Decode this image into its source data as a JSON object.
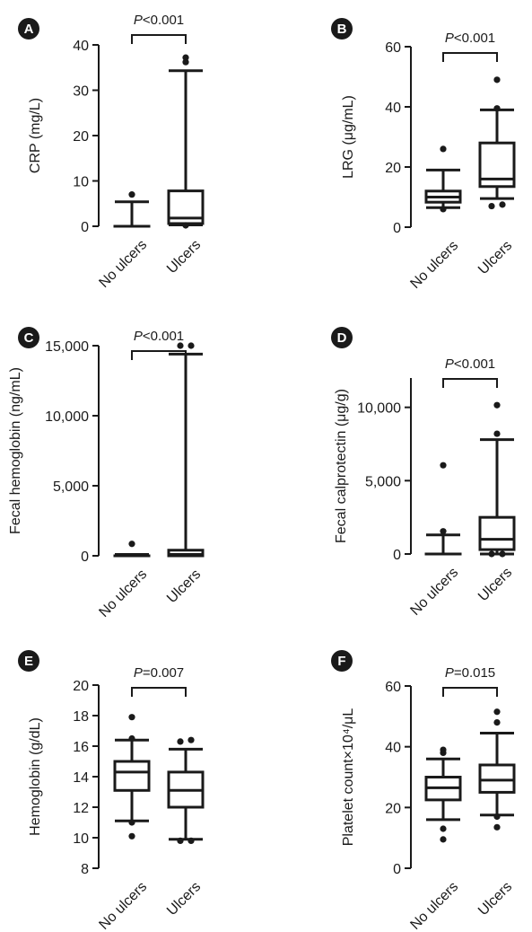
{
  "chart_data": [
    {
      "id": "A",
      "type": "box",
      "ylabel": "CRP (mg/L)",
      "ylim": [
        0,
        40
      ],
      "yticks": [
        0,
        10,
        20,
        30,
        40
      ],
      "ytick_labels": [
        "0",
        "10",
        "20",
        "30",
        "40"
      ],
      "categories": [
        "No ulcers",
        "Ulcers"
      ],
      "pvalue": {
        "label": "P",
        "op": "<",
        "value": "0.001"
      },
      "boxes": [
        {
          "lo": 0,
          "q1": 0,
          "median": 0,
          "q3": 0,
          "hi": 5.4,
          "outliers": [
            7
          ]
        },
        {
          "lo": 0.3,
          "q1": 0.6,
          "median": 1.8,
          "q3": 7.8,
          "hi": 34.3,
          "outliers": [
            36.2,
            37.2,
            0.2
          ]
        }
      ]
    },
    {
      "id": "B",
      "type": "box",
      "ylabel": "LRG (μg/mL)",
      "ylim": [
        0,
        60
      ],
      "yticks": [
        0,
        20,
        40,
        60
      ],
      "ytick_labels": [
        "0",
        "20",
        "40",
        "60"
      ],
      "categories": [
        "No ulcers",
        "Ulcers"
      ],
      "pvalue": {
        "label": "P",
        "op": "<",
        "value": "0.001"
      },
      "boxes": [
        {
          "lo": 6.5,
          "q1": 8.3,
          "median": 10,
          "q3": 12,
          "hi": 19,
          "outliers": [
            26,
            6
          ]
        },
        {
          "lo": 9.5,
          "q1": 13.5,
          "median": 16,
          "q3": 28,
          "hi": 39,
          "outliers": [
            49,
            39.5,
            7,
            7.5
          ]
        }
      ]
    },
    {
      "id": "C",
      "type": "box",
      "ylabel": "Fecal hemoglobin (ng/mL)",
      "ylim": [
        0,
        15000
      ],
      "yticks": [
        0,
        5000,
        10000,
        15000
      ],
      "ytick_labels": [
        "0",
        "5,000",
        "10,000",
        "15,000"
      ],
      "categories": [
        "No ulcers",
        "Ulcers"
      ],
      "pvalue": {
        "label": "P",
        "op": "<",
        "value": "0.001"
      },
      "boxes": [
        {
          "lo": 0,
          "q1": 0,
          "median": 0,
          "q3": 0,
          "hi": 100,
          "outliers": [
            850
          ]
        },
        {
          "lo": 0,
          "q1": 0,
          "median": 100,
          "q3": 400,
          "hi": 14400,
          "outliers": [
            15000,
            15000
          ]
        }
      ]
    },
    {
      "id": "D",
      "type": "box",
      "ylabel": "Fecal calprotectin (μg/g)",
      "ylim": [
        0,
        12000
      ],
      "yticks": [
        0,
        5000,
        10000
      ],
      "ytick_labels": [
        "0",
        "5,000",
        "10,000"
      ],
      "categories": [
        "No ulcers",
        "Ulcers"
      ],
      "pvalue": {
        "label": "P",
        "op": "<",
        "value": "0.001"
      },
      "boxes": [
        {
          "lo": 0,
          "q1": 0,
          "median": 0,
          "q3": 0,
          "hi": 1300,
          "outliers": [
            6050,
            1550
          ]
        },
        {
          "lo": 0,
          "q1": 300,
          "median": 1000,
          "q3": 2500,
          "hi": 7800,
          "outliers": [
            10150,
            8200,
            0,
            0
          ]
        }
      ]
    },
    {
      "id": "E",
      "type": "box",
      "ylabel": "Hemoglobin (g/dL)",
      "ylim": [
        8,
        20
      ],
      "yticks": [
        8,
        10,
        12,
        14,
        16,
        18,
        20
      ],
      "ytick_labels": [
        "8",
        "10",
        "12",
        "14",
        "16",
        "18",
        "20"
      ],
      "categories": [
        "No ulcers",
        "Ulcers"
      ],
      "pvalue": {
        "label": "P",
        "op": "=",
        "value": "0.007"
      },
      "boxes": [
        {
          "lo": 11.1,
          "q1": 13.1,
          "median": 14.3,
          "q3": 15,
          "hi": 16.4,
          "outliers": [
            17.9,
            16.5,
            11,
            10.1
          ]
        },
        {
          "lo": 9.9,
          "q1": 12,
          "median": 13.1,
          "q3": 14.3,
          "hi": 15.8,
          "outliers": [
            16.3,
            16.4,
            9.8,
            9.8
          ]
        }
      ]
    },
    {
      "id": "F",
      "type": "box",
      "ylabel": "Platelet count×10⁴/μL",
      "ylim": [
        0,
        60
      ],
      "yticks": [
        0,
        20,
        40,
        60
      ],
      "ytick_labels": [
        "0",
        "20",
        "40",
        "60"
      ],
      "categories": [
        "No ulcers",
        "Ulcers"
      ],
      "pvalue": {
        "label": "P",
        "op": "=",
        "value": "0.015"
      },
      "boxes": [
        {
          "lo": 16,
          "q1": 22.5,
          "median": 26.5,
          "q3": 30,
          "hi": 36,
          "outliers": [
            38,
            39,
            13,
            9.5
          ]
        },
        {
          "lo": 17.5,
          "q1": 25,
          "median": 29,
          "q3": 34,
          "hi": 44.5,
          "outliers": [
            51.5,
            48,
            17,
            13.5
          ]
        }
      ]
    }
  ],
  "colors": {
    "ink": "#1a1a1a",
    "badge": "#1a1a1a"
  }
}
